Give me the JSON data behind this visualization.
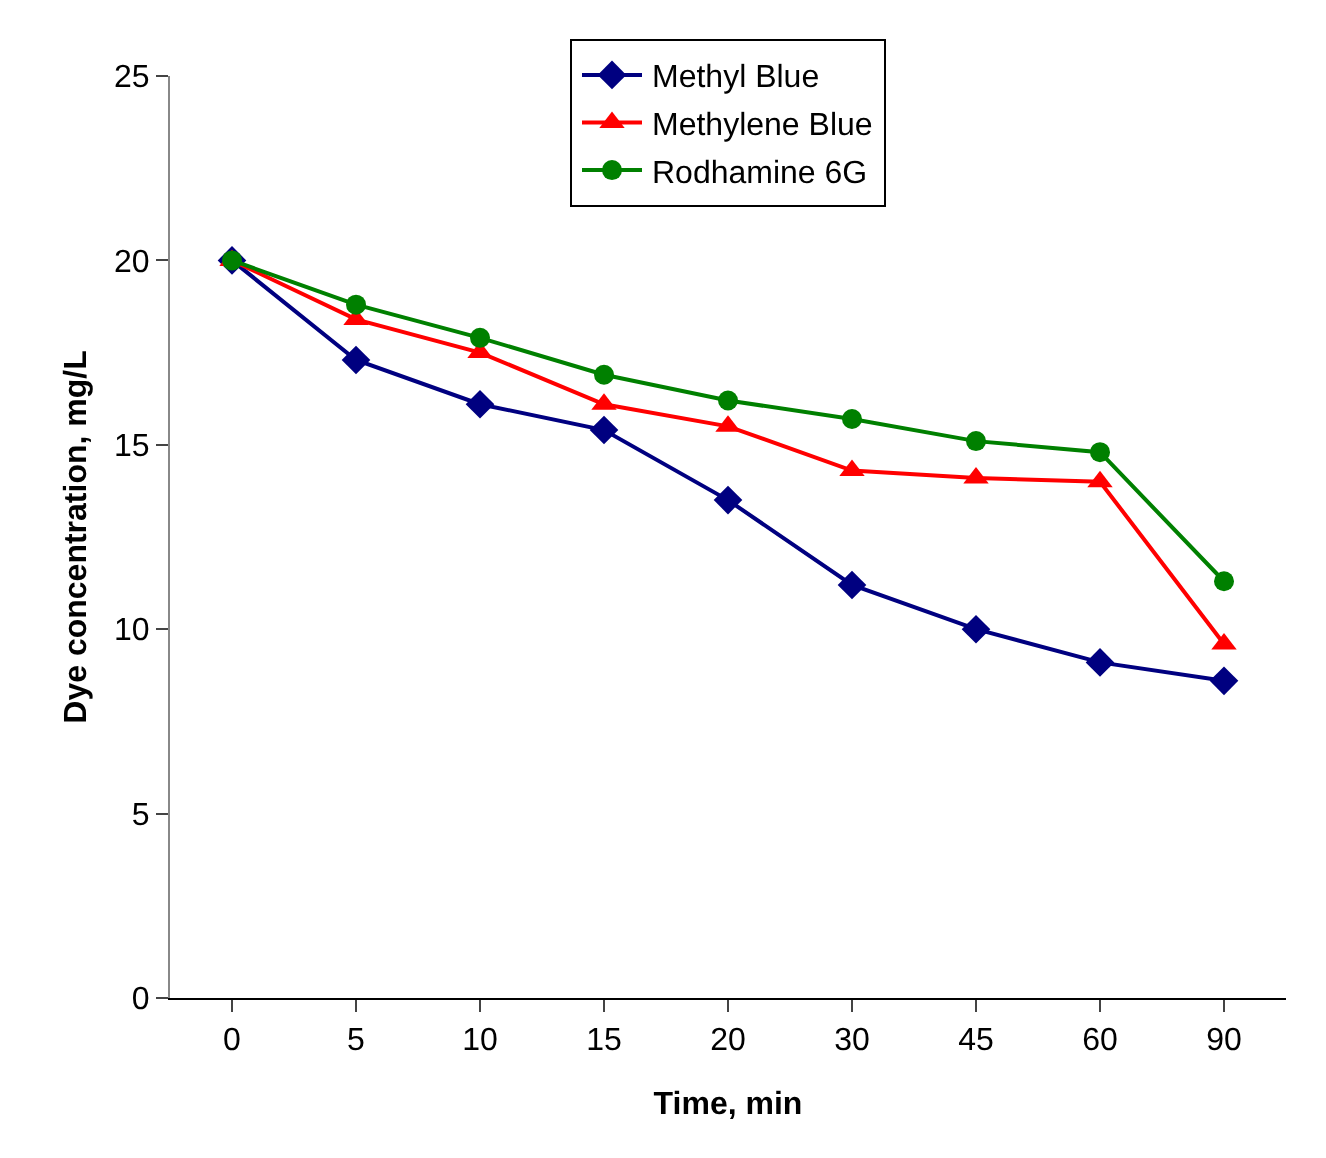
{
  "chart_data": {
    "type": "line",
    "xlabel": "Time, min",
    "ylabel": "Dye concentration, mg/L",
    "categories": [
      "0",
      "5",
      "10",
      "15",
      "20",
      "30",
      "45",
      "60",
      "90"
    ],
    "ylim": [
      0,
      25
    ],
    "yticks": [
      0,
      5,
      10,
      15,
      20,
      25
    ],
    "grid": false,
    "legend": "top",
    "line_style": "solid",
    "series": [
      {
        "name": "Methyl Blue",
        "color": "#000080",
        "marker": "diamond",
        "values": [
          20.0,
          17.3,
          16.1,
          15.4,
          13.5,
          11.2,
          10.0,
          9.1,
          8.6
        ]
      },
      {
        "name": "Methylene Blue",
        "color": "#ff0000",
        "marker": "triangle",
        "values": [
          20.0,
          18.4,
          17.5,
          16.1,
          15.5,
          14.3,
          14.1,
          14.0,
          9.6
        ]
      },
      {
        "name": "Rodhamine 6G",
        "color": "#008000",
        "marker": "circle",
        "values": [
          20.0,
          18.8,
          17.9,
          16.9,
          16.2,
          15.7,
          15.1,
          14.8,
          11.3
        ]
      }
    ]
  }
}
